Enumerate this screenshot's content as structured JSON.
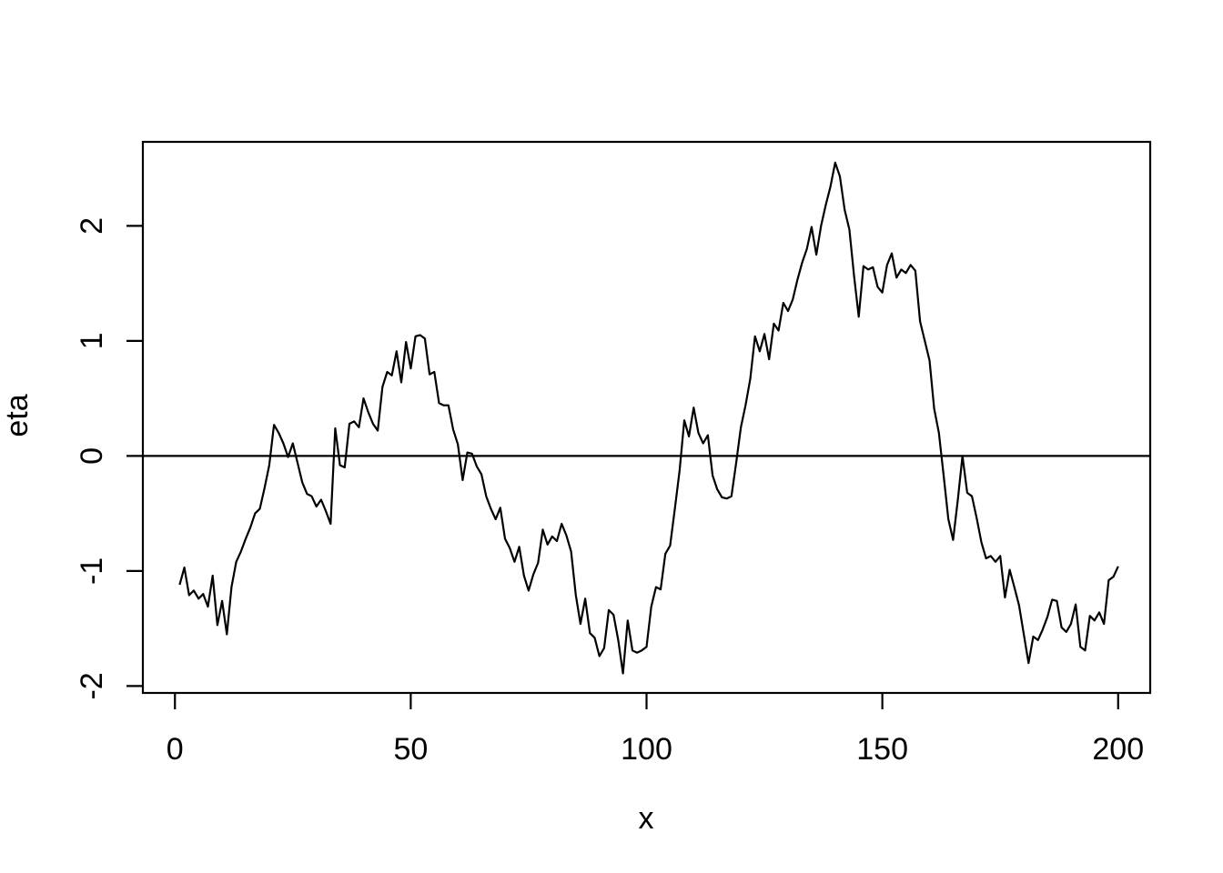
{
  "figure": {
    "background": "#ffffff",
    "foreground": "#000000"
  },
  "chart_data": {
    "type": "line",
    "title": "",
    "xlabel": "x",
    "ylabel": "eta",
    "grid": false,
    "legend": null,
    "line_color": "#000000",
    "xlim": [
      -6.8,
      206.8
    ],
    "ylim": [
      -2.06,
      2.73
    ],
    "x_tick_values": [
      0,
      50,
      100,
      150,
      200
    ],
    "x_tick_labels": [
      "0",
      "50",
      "100",
      "150",
      "200"
    ],
    "y_tick_values": [
      -2,
      -1,
      0,
      1,
      2
    ],
    "y_tick_labels": [
      "-2",
      "-1",
      "0",
      "1",
      "2"
    ],
    "reference_lines": [
      {
        "axis": "y",
        "value": 0
      }
    ],
    "series": [
      {
        "name": "eta",
        "color": "#000000",
        "x_start": 1,
        "x_step": 1,
        "y": [
          -1.12,
          -0.97,
          -1.21,
          -1.17,
          -1.24,
          -1.2,
          -1.31,
          -1.04,
          -1.47,
          -1.26,
          -1.55,
          -1.14,
          -0.92,
          -0.83,
          -0.72,
          -0.62,
          -0.5,
          -0.46,
          -0.28,
          -0.08,
          0.27,
          0.2,
          0.11,
          -0.01,
          0.11,
          -0.06,
          -0.23,
          -0.33,
          -0.35,
          -0.44,
          -0.38,
          -0.48,
          -0.59,
          0.24,
          -0.08,
          -0.1,
          0.28,
          0.3,
          0.25,
          0.5,
          0.38,
          0.28,
          0.22,
          0.6,
          0.73,
          0.7,
          0.91,
          0.64,
          0.99,
          0.76,
          1.04,
          1.05,
          1.02,
          0.71,
          0.73,
          0.46,
          0.44,
          0.44,
          0.23,
          0.1,
          -0.21,
          0.03,
          0.02,
          -0.09,
          -0.16,
          -0.35,
          -0.46,
          -0.55,
          -0.45,
          -0.72,
          -0.8,
          -0.92,
          -0.79,
          -1.04,
          -1.17,
          -1.03,
          -0.93,
          -0.64,
          -0.77,
          -0.7,
          -0.74,
          -0.59,
          -0.69,
          -0.83,
          -1.21,
          -1.46,
          -1.24,
          -1.54,
          -1.58,
          -1.74,
          -1.67,
          -1.34,
          -1.38,
          -1.6,
          -1.89,
          -1.43,
          -1.69,
          -1.71,
          -1.69,
          -1.66,
          -1.31,
          -1.14,
          -1.16,
          -0.85,
          -0.78,
          -0.46,
          -0.13,
          0.31,
          0.17,
          0.42,
          0.2,
          0.11,
          0.18,
          -0.17,
          -0.29,
          -0.36,
          -0.37,
          -0.35,
          -0.06,
          0.25,
          0.44,
          0.67,
          1.04,
          0.91,
          1.06,
          0.84,
          1.15,
          1.09,
          1.33,
          1.26,
          1.36,
          1.53,
          1.68,
          1.8,
          1.99,
          1.75,
          2.0,
          2.18,
          2.34,
          2.55,
          2.43,
          2.14,
          1.97,
          1.57,
          1.21,
          1.65,
          1.62,
          1.64,
          1.47,
          1.42,
          1.66,
          1.76,
          1.55,
          1.62,
          1.59,
          1.66,
          1.61,
          1.17,
          1.0,
          0.83,
          0.41,
          0.2,
          -0.17,
          -0.55,
          -0.73,
          -0.38,
          0.0,
          -0.32,
          -0.35,
          -0.54,
          -0.75,
          -0.89,
          -0.87,
          -0.92,
          -0.87,
          -1.23,
          -0.99,
          -1.14,
          -1.3,
          -1.55,
          -1.8,
          -1.57,
          -1.6,
          -1.51,
          -1.4,
          -1.25,
          -1.26,
          -1.49,
          -1.53,
          -1.46,
          -1.29,
          -1.66,
          -1.69,
          -1.39,
          -1.43,
          -1.36,
          -1.46,
          -1.08,
          -1.05,
          -0.96
        ]
      }
    ]
  }
}
